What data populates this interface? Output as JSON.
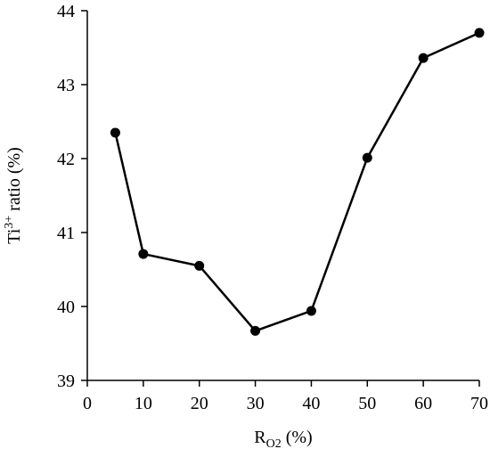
{
  "chart_data": {
    "type": "line",
    "xlabel": {
      "main": "R",
      "sub": "O2",
      "unit": " (%)"
    },
    "ylabel": {
      "prefix": "Ti",
      "sup": "3+",
      "suffix": " ratio (%)"
    },
    "xlim": [
      0,
      70
    ],
    "ylim": [
      39,
      44
    ],
    "xticks": [
      0,
      10,
      20,
      30,
      40,
      50,
      60,
      70
    ],
    "yticks": [
      39,
      40,
      41,
      42,
      43,
      44
    ],
    "grid": false,
    "legend": "none",
    "series": [
      {
        "x": [
          5,
          10,
          20,
          30,
          40,
          50,
          60,
          70
        ],
        "y": [
          42.35,
          40.71,
          40.55,
          39.67,
          39.94,
          42.01,
          43.36,
          43.7
        ]
      }
    ],
    "colors": {
      "line": "#000000",
      "marker": "#000000",
      "axis": "#000000"
    }
  }
}
